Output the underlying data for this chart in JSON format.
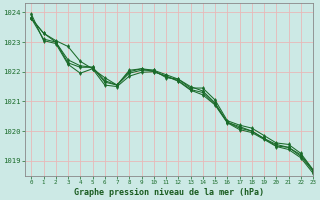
{
  "bg_color": "#cce9e5",
  "grid_color": "#e8b8b8",
  "line_color": "#1a6b2a",
  "marker_color": "#1a6b2a",
  "xlabel": "Graphe pression niveau de la mer (hPa)",
  "xlabel_color": "#1a5c20",
  "ylim": [
    1018.5,
    1024.3
  ],
  "xlim": [
    -0.5,
    23
  ],
  "yticks": [
    1019,
    1020,
    1021,
    1022,
    1023,
    1024
  ],
  "xticks": [
    0,
    1,
    2,
    3,
    4,
    5,
    6,
    7,
    8,
    9,
    10,
    11,
    12,
    13,
    14,
    15,
    16,
    17,
    18,
    19,
    20,
    21,
    22,
    23
  ],
  "series": [
    [
      1023.8,
      1023.3,
      1023.05,
      1022.85,
      1022.35,
      1022.1,
      1021.8,
      1021.55,
      1022.05,
      1022.1,
      1022.05,
      1021.8,
      1021.75,
      1021.45,
      1021.45,
      1021.05,
      1020.35,
      1020.2,
      1020.1,
      1019.85,
      1019.6,
      1019.55,
      1019.25,
      1018.7
    ],
    [
      1023.8,
      1023.3,
      1023.0,
      1022.4,
      1022.2,
      1022.15,
      1021.7,
      1021.55,
      1022.0,
      1022.1,
      1022.0,
      1021.85,
      1021.7,
      1021.4,
      1021.3,
      1020.9,
      1020.3,
      1020.15,
      1020.0,
      1019.75,
      1019.55,
      1019.45,
      1019.2,
      1018.68
    ],
    [
      1023.8,
      1023.1,
      1023.0,
      1022.3,
      1022.15,
      1022.15,
      1021.65,
      1021.55,
      1021.95,
      1022.05,
      1022.05,
      1021.9,
      1021.75,
      1021.5,
      1021.35,
      1020.95,
      1020.3,
      1020.1,
      1020.0,
      1019.75,
      1019.5,
      1019.45,
      1019.15,
      1018.65
    ],
    [
      1023.95,
      1023.05,
      1022.95,
      1022.25,
      1021.95,
      1022.1,
      1021.55,
      1021.5,
      1021.85,
      1021.98,
      1022.0,
      1021.85,
      1021.68,
      1021.38,
      1021.22,
      1020.88,
      1020.28,
      1020.05,
      1019.95,
      1019.72,
      1019.48,
      1019.38,
      1019.1,
      1018.58
    ]
  ]
}
